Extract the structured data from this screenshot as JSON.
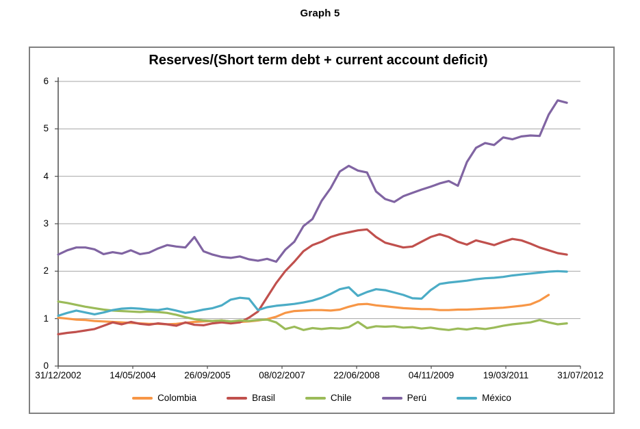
{
  "figure": {
    "caption": "Graph 5"
  },
  "colors": {
    "background": "#FFFFFF",
    "border": "#808080",
    "grid": "#A6A6A6",
    "axis": "#4D4D4D",
    "text": "#000000"
  },
  "chart_data": {
    "type": "line",
    "title": "Reserves/(Short term debt + current account deficit)",
    "xlabel": "",
    "ylabel": "",
    "ylim": [
      0,
      6
    ],
    "y_ticks": [
      0,
      1,
      2,
      3,
      4,
      5,
      6
    ],
    "x_tick_labels": [
      "31/12/2002",
      "14/05/2004",
      "26/09/2005",
      "08/02/2007",
      "22/06/2008",
      "04/11/2009",
      "19/03/2011",
      "31/07/2012"
    ],
    "x_unit": "months since 31/12/2002",
    "x_total_months": 115,
    "sample_step_months": 2,
    "grid": "horizontal",
    "legend_position": "bottom",
    "series": [
      {
        "name": "Colombia",
        "color": "#F79646",
        "start_month": 0,
        "values": [
          1.02,
          1.0,
          0.98,
          0.97,
          0.95,
          0.94,
          0.93,
          0.92,
          0.91,
          0.9,
          0.89,
          0.89,
          0.88,
          0.89,
          0.91,
          0.93,
          0.94,
          0.95,
          0.96,
          0.94,
          0.93,
          0.94,
          0.96,
          0.99,
          1.04,
          1.12,
          1.16,
          1.17,
          1.18,
          1.18,
          1.17,
          1.19,
          1.25,
          1.3,
          1.31,
          1.28,
          1.26,
          1.24,
          1.22,
          1.21,
          1.2,
          1.2,
          1.18,
          1.18,
          1.19,
          1.19,
          1.2,
          1.21,
          1.22,
          1.23,
          1.25,
          1.27,
          1.3,
          1.38,
          1.5
        ]
      },
      {
        "name": "Brasil",
        "color": "#C0504D",
        "start_month": 0,
        "values": [
          0.67,
          0.7,
          0.72,
          0.75,
          0.78,
          0.85,
          0.92,
          0.88,
          0.93,
          0.89,
          0.87,
          0.9,
          0.88,
          0.85,
          0.92,
          0.87,
          0.86,
          0.9,
          0.92,
          0.9,
          0.92,
          1.02,
          1.15,
          1.45,
          1.75,
          2.0,
          2.2,
          2.42,
          2.55,
          2.62,
          2.72,
          2.78,
          2.82,
          2.86,
          2.88,
          2.72,
          2.6,
          2.55,
          2.5,
          2.52,
          2.62,
          2.72,
          2.78,
          2.72,
          2.62,
          2.56,
          2.65,
          2.6,
          2.55,
          2.62,
          2.68,
          2.65,
          2.58,
          2.5,
          2.44,
          2.38,
          2.35
        ]
      },
      {
        "name": "Chile",
        "color": "#9BBB59",
        "start_month": 0,
        "values": [
          1.36,
          1.33,
          1.29,
          1.25,
          1.22,
          1.19,
          1.17,
          1.16,
          1.15,
          1.14,
          1.15,
          1.14,
          1.12,
          1.08,
          1.03,
          0.99,
          0.96,
          0.95,
          0.96,
          0.94,
          0.96,
          0.95,
          0.97,
          0.98,
          0.92,
          0.78,
          0.83,
          0.76,
          0.8,
          0.78,
          0.8,
          0.79,
          0.82,
          0.93,
          0.8,
          0.84,
          0.83,
          0.84,
          0.81,
          0.82,
          0.79,
          0.81,
          0.78,
          0.76,
          0.79,
          0.77,
          0.8,
          0.78,
          0.81,
          0.85,
          0.88,
          0.9,
          0.92,
          0.97,
          0.92,
          0.88,
          0.9
        ]
      },
      {
        "name": "Perú",
        "color": "#8064A2",
        "start_month": 0,
        "values": [
          2.35,
          2.44,
          2.5,
          2.5,
          2.46,
          2.36,
          2.4,
          2.37,
          2.44,
          2.36,
          2.39,
          2.48,
          2.55,
          2.52,
          2.5,
          2.72,
          2.42,
          2.35,
          2.3,
          2.28,
          2.31,
          2.25,
          2.22,
          2.26,
          2.2,
          2.45,
          2.62,
          2.95,
          3.1,
          3.48,
          3.75,
          4.1,
          4.22,
          4.12,
          4.08,
          3.68,
          3.52,
          3.46,
          3.58,
          3.65,
          3.72,
          3.78,
          3.85,
          3.9,
          3.8,
          4.3,
          4.6,
          4.7,
          4.66,
          4.82,
          4.78,
          4.84,
          4.86,
          4.85,
          5.3,
          5.6,
          5.55
        ]
      },
      {
        "name": "México",
        "color": "#4BACC6",
        "start_month": 0,
        "values": [
          1.06,
          1.12,
          1.17,
          1.13,
          1.09,
          1.13,
          1.18,
          1.21,
          1.22,
          1.21,
          1.19,
          1.18,
          1.21,
          1.17,
          1.12,
          1.15,
          1.19,
          1.22,
          1.28,
          1.4,
          1.44,
          1.42,
          1.18,
          1.24,
          1.27,
          1.29,
          1.31,
          1.34,
          1.38,
          1.44,
          1.52,
          1.62,
          1.66,
          1.48,
          1.56,
          1.62,
          1.6,
          1.55,
          1.5,
          1.43,
          1.42,
          1.6,
          1.73,
          1.76,
          1.78,
          1.8,
          1.83,
          1.85,
          1.86,
          1.88,
          1.91,
          1.93,
          1.95,
          1.97,
          1.99,
          2.0,
          1.99
        ]
      }
    ]
  }
}
